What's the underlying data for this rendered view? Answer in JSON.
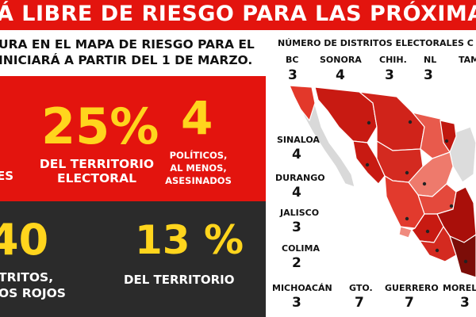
{
  "header": {
    "title": "Á LIBRE DE RIESGO PARA LAS PRÓXIMA"
  },
  "subtitle": {
    "line1": "URA EN EL MAPA DE RIESGO PARA EL",
    "line2": "INICIARÁ A PARTIR DEL 1 DE MARZO."
  },
  "stats": [
    {
      "value": "",
      "label": "ES"
    },
    {
      "value": "25%",
      "label_line1": "DEL TERRITORIO",
      "label_line2": "ELECTORAL"
    },
    {
      "value": "4",
      "label_line1": "POLÍTICOS,",
      "label_line2": "AL MENOS,",
      "label_line3": "ASESINADOS"
    },
    {
      "value": "40",
      "label_line1": "TRITOS,",
      "label_line2": "OS ROJOS"
    },
    {
      "value": "13 %",
      "label_line1": "DEL TERRITORIO"
    }
  ],
  "map": {
    "title": "NÚMERO DE DISTRITOS ELECTORALES C",
    "states": [
      {
        "name": "BC",
        "count": "3"
      },
      {
        "name": "SONORA",
        "count": "4"
      },
      {
        "name": "CHIH.",
        "count": "3"
      },
      {
        "name": "NL",
        "count": "3"
      },
      {
        "name": "TAM",
        "count": ""
      },
      {
        "name": "SINALOA",
        "count": "4"
      },
      {
        "name": "DURANGO",
        "count": "4"
      },
      {
        "name": "JALISCO",
        "count": "3"
      },
      {
        "name": "COLIMA",
        "count": "2"
      },
      {
        "name": "MICHOACÁN",
        "count": "3"
      },
      {
        "name": "GTO.",
        "count": "7"
      },
      {
        "name": "GUERRERO",
        "count": "7"
      },
      {
        "name": "MORELO",
        "count": "3"
      }
    ]
  },
  "colors": {
    "red": "#e3140e",
    "dark": "#2b2b2b",
    "yellow": "#ffd51d"
  }
}
